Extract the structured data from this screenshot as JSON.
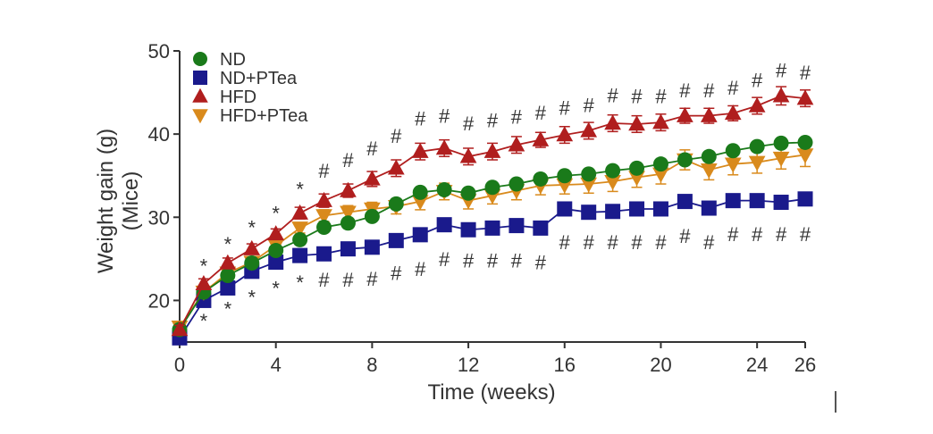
{
  "chart_data": {
    "type": "line",
    "xlabel": "Time (weeks)",
    "ylabel_line1": "Weight gain (g)",
    "ylabel_line2": "(Mice)",
    "xlim": [
      0,
      26
    ],
    "ylim": [
      15,
      50
    ],
    "xticks": [
      0,
      4,
      8,
      12,
      16,
      20,
      24,
      26
    ],
    "yticks": [
      20,
      30,
      40,
      50
    ],
    "legend_position": "top-left",
    "x": [
      0,
      1,
      2,
      3,
      4,
      5,
      6,
      7,
      8,
      9,
      10,
      11,
      12,
      13,
      14,
      15,
      16,
      17,
      18,
      19,
      20,
      21,
      22,
      23,
      24,
      25,
      26
    ],
    "series": [
      {
        "name": "ND",
        "color": "#1a7a1a",
        "marker": "circle",
        "values": [
          16.5,
          21.0,
          23.0,
          24.5,
          26.0,
          27.3,
          28.8,
          29.3,
          30.1,
          31.6,
          33.0,
          33.3,
          32.9,
          33.6,
          34.0,
          34.6,
          35.0,
          35.2,
          35.6,
          35.9,
          36.4,
          36.9,
          37.3,
          38.0,
          38.5,
          38.9,
          39.0
        ],
        "errors": [
          0.4,
          0.4,
          0.4,
          0.4,
          0.4,
          0.4,
          0.4,
          0.4,
          0.4,
          0.4,
          0.5,
          0.5,
          0.5,
          0.5,
          0.5,
          0.5,
          0.5,
          0.5,
          0.5,
          0.5,
          0.5,
          0.5,
          0.5,
          0.5,
          0.5,
          0.5,
          0.5
        ]
      },
      {
        "name": "ND+PTea",
        "color": "#1a1a8c",
        "marker": "square",
        "values": [
          15.5,
          20.0,
          21.5,
          23.5,
          24.6,
          25.4,
          25.6,
          26.2,
          26.4,
          27.2,
          27.9,
          29.1,
          28.5,
          28.7,
          29.0,
          28.7,
          31.0,
          30.6,
          30.7,
          31.0,
          31.0,
          31.9,
          31.1,
          32.0,
          32.0,
          31.8,
          32.2
        ],
        "errors": [
          0.4,
          0.4,
          0.4,
          0.4,
          0.4,
          0.4,
          0.4,
          0.4,
          0.4,
          0.4,
          0.4,
          0.4,
          0.4,
          0.4,
          0.4,
          0.4,
          0.4,
          0.4,
          0.4,
          0.4,
          0.4,
          0.4,
          0.4,
          0.4,
          0.4,
          0.4,
          0.4
        ]
      },
      {
        "name": "HFD",
        "color": "#b01e1e",
        "marker": "triangle-up",
        "values": [
          16.5,
          22.0,
          24.5,
          26.2,
          28.0,
          30.5,
          32.0,
          33.2,
          34.6,
          35.9,
          37.9,
          38.3,
          37.3,
          37.9,
          38.7,
          39.3,
          39.9,
          40.4,
          41.3,
          41.2,
          41.4,
          42.2,
          42.2,
          42.5,
          43.4,
          44.6,
          44.3
        ],
        "errors": [
          0.5,
          0.6,
          0.6,
          0.6,
          0.6,
          0.7,
          0.8,
          0.8,
          0.9,
          1.0,
          1.0,
          1.0,
          1.0,
          1.0,
          1.0,
          0.9,
          1.0,
          1.0,
          1.0,
          1.0,
          1.0,
          0.9,
          0.9,
          0.9,
          1.0,
          1.1,
          1.0
        ]
      },
      {
        "name": "HFD+PTea",
        "color": "#d98a1c",
        "marker": "triangle-down",
        "values": [
          16.8,
          21.0,
          23.3,
          24.6,
          26.6,
          28.7,
          30.2,
          30.6,
          31.0,
          31.3,
          31.9,
          33.1,
          32.0,
          32.6,
          33.2,
          33.8,
          33.9,
          34.0,
          34.3,
          34.8,
          35.2,
          36.9,
          35.7,
          36.4,
          36.6,
          37.1,
          37.5
        ],
        "errors": [
          0.4,
          0.5,
          0.5,
          0.5,
          0.6,
          0.6,
          0.7,
          0.8,
          0.8,
          0.9,
          1.0,
          1.0,
          1.0,
          1.0,
          1.1,
          1.1,
          1.1,
          1.1,
          1.2,
          1.2,
          1.2,
          1.2,
          1.2,
          1.3,
          1.3,
          1.3,
          1.4
        ]
      }
    ],
    "significance_annotations": [
      {
        "text": "*",
        "x": 1,
        "y": 24.2
      },
      {
        "text": "*",
        "x": 2,
        "y": 26.8
      },
      {
        "text": "*",
        "x": 3,
        "y": 28.8
      },
      {
        "text": "*",
        "x": 4,
        "y": 30.5
      },
      {
        "text": "*",
        "x": 5,
        "y": 33.4
      },
      {
        "text": "#",
        "x": 6,
        "y": 35.6
      },
      {
        "text": "#",
        "x": 7,
        "y": 36.9
      },
      {
        "text": "#",
        "x": 8,
        "y": 38.3
      },
      {
        "text": "#",
        "x": 9,
        "y": 39.8
      },
      {
        "text": "#",
        "x": 10,
        "y": 41.9
      },
      {
        "text": "#",
        "x": 11,
        "y": 42.2
      },
      {
        "text": "#",
        "x": 12,
        "y": 41.3
      },
      {
        "text": "#",
        "x": 13,
        "y": 41.7
      },
      {
        "text": "#",
        "x": 14,
        "y": 42.1
      },
      {
        "text": "#",
        "x": 15,
        "y": 42.6
      },
      {
        "text": "#",
        "x": 16,
        "y": 43.2
      },
      {
        "text": "#",
        "x": 17,
        "y": 43.5
      },
      {
        "text": "#",
        "x": 18,
        "y": 44.7
      },
      {
        "text": "#",
        "x": 19,
        "y": 44.6
      },
      {
        "text": "#",
        "x": 20,
        "y": 44.6
      },
      {
        "text": "#",
        "x": 21,
        "y": 45.3
      },
      {
        "text": "#",
        "x": 22,
        "y": 45.3
      },
      {
        "text": "#",
        "x": 23,
        "y": 45.6
      },
      {
        "text": "#",
        "x": 24,
        "y": 46.5
      },
      {
        "text": "#",
        "x": 25,
        "y": 47.7
      },
      {
        "text": "#",
        "x": 26,
        "y": 47.4
      },
      {
        "text": "*",
        "x": 1,
        "y": 17.6
      },
      {
        "text": "*",
        "x": 2,
        "y": 19.0
      },
      {
        "text": "*",
        "x": 3,
        "y": 20.4
      },
      {
        "text": "*",
        "x": 4,
        "y": 21.5
      },
      {
        "text": "*",
        "x": 5,
        "y": 22.2
      },
      {
        "text": "#",
        "x": 6,
        "y": 22.5
      },
      {
        "text": "#",
        "x": 7,
        "y": 22.5
      },
      {
        "text": "#",
        "x": 8,
        "y": 22.6
      },
      {
        "text": "#",
        "x": 9,
        "y": 23.3
      },
      {
        "text": "#",
        "x": 10,
        "y": 23.8
      },
      {
        "text": "#",
        "x": 11,
        "y": 25.0
      },
      {
        "text": "#",
        "x": 12,
        "y": 24.8
      },
      {
        "text": "#",
        "x": 13,
        "y": 24.8
      },
      {
        "text": "#",
        "x": 14,
        "y": 24.8
      },
      {
        "text": "#",
        "x": 15,
        "y": 24.6
      },
      {
        "text": "#",
        "x": 16,
        "y": 27.0
      },
      {
        "text": "#",
        "x": 17,
        "y": 27.0
      },
      {
        "text": "#",
        "x": 18,
        "y": 27.0
      },
      {
        "text": "#",
        "x": 19,
        "y": 27.0
      },
      {
        "text": "#",
        "x": 20,
        "y": 27.0
      },
      {
        "text": "#",
        "x": 21,
        "y": 27.8
      },
      {
        "text": "#",
        "x": 22,
        "y": 27.0
      },
      {
        "text": "#",
        "x": 23,
        "y": 28.0
      },
      {
        "text": "#",
        "x": 24,
        "y": 28.0
      },
      {
        "text": "#",
        "x": 25,
        "y": 28.0
      },
      {
        "text": "#",
        "x": 26,
        "y": 28.0
      }
    ]
  }
}
